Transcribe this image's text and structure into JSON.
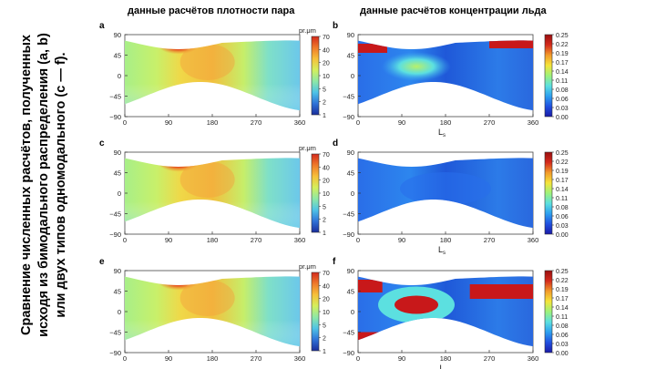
{
  "caption": {
    "lines": [
      "Сравнение численных расчётов, полученных",
      "исходя из бимодального распределения (a, b)",
      "или двух типов одномодального (c — f)."
    ]
  },
  "column_titles": {
    "left": "данные расчётов плотности пара",
    "right": "данные расчётов концентрации льда"
  },
  "colors": {
    "vapor_scale": [
      "#1a2d9c",
      "#2f73d8",
      "#4fc3e6",
      "#8ee8a6",
      "#d4ef5c",
      "#f6c03a",
      "#ef7a2a",
      "#d42a1c"
    ],
    "ice_scale": [
      "#1a1aa8",
      "#2050e0",
      "#2ea0f0",
      "#5ce0e0",
      "#9ef27a",
      "#f5e43a",
      "#f29a2a",
      "#d42a1c",
      "#9a0f0f"
    ]
  },
  "chart_data": [
    {
      "panel": "a",
      "type": "heatmap",
      "quantity": "vapor",
      "x_ticks": [
        0,
        90,
        180,
        270,
        360
      ],
      "y_ticks": [
        90,
        45,
        0,
        -45,
        -90
      ],
      "xlim": [
        0,
        360
      ],
      "ylim": [
        -90,
        90
      ],
      "xlabel": "",
      "colorbar": {
        "unit": "pr.μm",
        "ticks": [
          "70",
          "40",
          "20",
          "10",
          "5",
          "2",
          "1"
        ]
      },
      "peak": {
        "x": 110,
        "y": 75,
        "value": 70
      }
    },
    {
      "panel": "b",
      "type": "heatmap",
      "quantity": "ice",
      "x_ticks": [
        0,
        90,
        180,
        270,
        360
      ],
      "y_ticks": [
        90,
        45,
        0,
        -45,
        -90
      ],
      "xlim": [
        0,
        360
      ],
      "ylim": [
        -90,
        90
      ],
      "xlabel": "L",
      "xlabel_sub": "s",
      "colorbar": {
        "ticks": [
          "0.25",
          "0.22",
          "0.19",
          "0.17",
          "0.14",
          "0.11",
          "0.08",
          "0.06",
          "0.03",
          "0.00"
        ]
      }
    },
    {
      "panel": "c",
      "type": "heatmap",
      "quantity": "vapor",
      "x_ticks": [
        0,
        90,
        180,
        270,
        360
      ],
      "y_ticks": [
        90,
        45,
        0,
        -45,
        -90
      ],
      "xlim": [
        0,
        360
      ],
      "ylim": [
        -90,
        90
      ],
      "xlabel": "",
      "colorbar": {
        "unit": "pr.μm",
        "ticks": [
          "70",
          "40",
          "20",
          "10",
          "5",
          "2",
          "1"
        ]
      },
      "peak": {
        "x": 110,
        "y": 75,
        "value": 70
      }
    },
    {
      "panel": "d",
      "type": "heatmap",
      "quantity": "ice",
      "x_ticks": [
        0,
        90,
        180,
        270,
        360
      ],
      "y_ticks": [
        90,
        45,
        0,
        -45,
        -90
      ],
      "xlim": [
        0,
        360
      ],
      "ylim": [
        -90,
        90
      ],
      "xlabel": "L",
      "xlabel_sub": "s",
      "colorbar": {
        "ticks": [
          "0.25",
          "0.22",
          "0.19",
          "0.17",
          "0.14",
          "0.11",
          "0.08",
          "0.06",
          "0.03",
          "0.00"
        ]
      }
    },
    {
      "panel": "e",
      "type": "heatmap",
      "quantity": "vapor",
      "x_ticks": [
        0,
        90,
        180,
        270,
        360
      ],
      "y_ticks": [
        90,
        45,
        0,
        -45,
        -90
      ],
      "xlim": [
        0,
        360
      ],
      "ylim": [
        -90,
        90
      ],
      "xlabel": "",
      "colorbar": {
        "unit": "pr.μm",
        "ticks": [
          "70",
          "40",
          "20",
          "10",
          "5",
          "2",
          "1"
        ]
      },
      "peak": {
        "x": 110,
        "y": 75,
        "value": 70
      }
    },
    {
      "panel": "f",
      "type": "heatmap",
      "quantity": "ice",
      "x_ticks": [
        0,
        90,
        180,
        270,
        360
      ],
      "y_ticks": [
        90,
        45,
        0,
        -45,
        -90
      ],
      "xlim": [
        0,
        360
      ],
      "ylim": [
        -90,
        90
      ],
      "xlabel": "L",
      "xlabel_sub": "",
      "colorbar": {
        "ticks": [
          "0.25",
          "0.22",
          "0.19",
          "0.17",
          "0.14",
          "0.11",
          "0.08",
          "0.06",
          "0.03",
          "0.00"
        ]
      }
    }
  ]
}
